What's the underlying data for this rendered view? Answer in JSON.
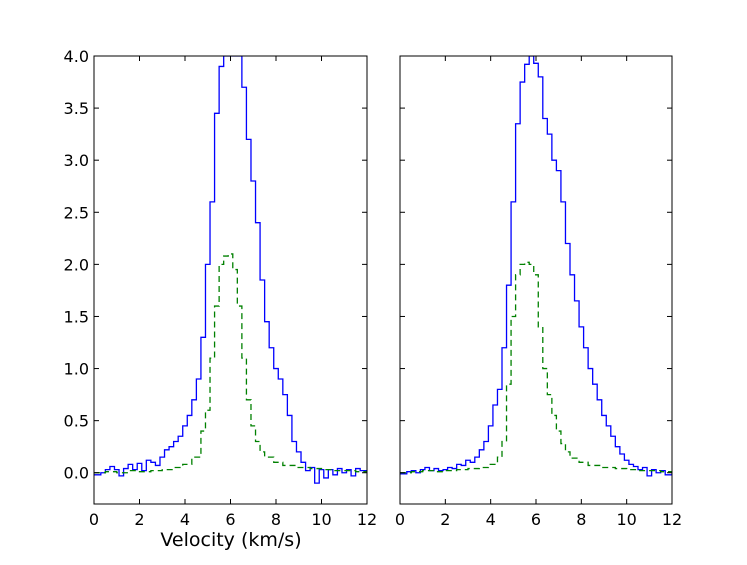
{
  "chart_data": [
    {
      "type": "line",
      "panel": "left",
      "xlabel": "Velocity (km/s)",
      "ylabel": "",
      "xlim": [
        0,
        12
      ],
      "ylim": [
        -0.3,
        4.0
      ],
      "xticks": [
        "0",
        "2",
        "4",
        "6",
        "8",
        "10",
        "12"
      ],
      "yticks": [
        "0.0",
        "0.5",
        "1.0",
        "1.5",
        "2.0",
        "2.5",
        "3.0",
        "3.5",
        "4.0"
      ],
      "grid": false,
      "series": [
        {
          "style": "steps-solid",
          "color": "#0000ff",
          "points": [
            [
              0.0,
              -0.02
            ],
            [
              0.3,
              0.0
            ],
            [
              0.5,
              0.03
            ],
            [
              0.7,
              0.06
            ],
            [
              0.9,
              0.03
            ],
            [
              1.1,
              -0.03
            ],
            [
              1.3,
              0.04
            ],
            [
              1.5,
              0.08
            ],
            [
              1.7,
              0.03
            ],
            [
              1.9,
              0.09
            ],
            [
              2.1,
              0.02
            ],
            [
              2.3,
              0.12
            ],
            [
              2.5,
              0.1
            ],
            [
              2.7,
              0.07
            ],
            [
              2.9,
              0.15
            ],
            [
              3.1,
              0.22
            ],
            [
              3.3,
              0.25
            ],
            [
              3.5,
              0.3
            ],
            [
              3.7,
              0.35
            ],
            [
              3.9,
              0.45
            ],
            [
              4.1,
              0.55
            ],
            [
              4.3,
              0.7
            ],
            [
              4.5,
              0.9
            ],
            [
              4.7,
              1.3
            ],
            [
              4.9,
              2.0
            ],
            [
              5.1,
              2.6
            ],
            [
              5.3,
              3.45
            ],
            [
              5.5,
              3.9
            ],
            [
              5.7,
              4.0
            ],
            [
              6.0,
              4.0
            ],
            [
              6.3,
              4.0
            ],
            [
              6.5,
              3.7
            ],
            [
              6.7,
              3.2
            ],
            [
              6.9,
              2.8
            ],
            [
              7.1,
              2.4
            ],
            [
              7.3,
              1.85
            ],
            [
              7.5,
              1.45
            ],
            [
              7.7,
              1.2
            ],
            [
              7.9,
              1.0
            ],
            [
              8.1,
              0.9
            ],
            [
              8.3,
              0.75
            ],
            [
              8.5,
              0.55
            ],
            [
              8.7,
              0.3
            ],
            [
              8.9,
              0.2
            ],
            [
              9.1,
              0.1
            ],
            [
              9.3,
              0.02
            ],
            [
              9.5,
              0.05
            ],
            [
              9.7,
              -0.1
            ],
            [
              9.9,
              0.03
            ],
            [
              10.1,
              -0.05
            ],
            [
              10.3,
              0.03
            ],
            [
              10.5,
              -0.02
            ],
            [
              10.7,
              0.04
            ],
            [
              10.9,
              0.0
            ],
            [
              11.1,
              0.03
            ],
            [
              11.3,
              -0.03
            ],
            [
              11.5,
              0.04
            ],
            [
              11.7,
              0.02
            ],
            [
              12.0,
              0.02
            ]
          ]
        },
        {
          "style": "steps-dashed",
          "color": "#008000",
          "points": [
            [
              0.0,
              0.0
            ],
            [
              0.5,
              0.01
            ],
            [
              1.0,
              0.0
            ],
            [
              1.5,
              0.02
            ],
            [
              2.0,
              0.01
            ],
            [
              2.5,
              0.02
            ],
            [
              3.0,
              0.03
            ],
            [
              3.5,
              0.05
            ],
            [
              3.9,
              0.08
            ],
            [
              4.3,
              0.15
            ],
            [
              4.7,
              0.4
            ],
            [
              4.9,
              0.6
            ],
            [
              5.1,
              1.1
            ],
            [
              5.3,
              1.6
            ],
            [
              5.5,
              2.0
            ],
            [
              5.7,
              2.08
            ],
            [
              5.9,
              2.1
            ],
            [
              6.1,
              1.95
            ],
            [
              6.3,
              1.6
            ],
            [
              6.5,
              1.1
            ],
            [
              6.7,
              0.7
            ],
            [
              6.9,
              0.45
            ],
            [
              7.1,
              0.3
            ],
            [
              7.3,
              0.2
            ],
            [
              7.5,
              0.15
            ],
            [
              7.9,
              0.1
            ],
            [
              8.3,
              0.07
            ],
            [
              8.9,
              0.05
            ],
            [
              9.5,
              0.04
            ],
            [
              10.0,
              0.03
            ],
            [
              10.5,
              0.02
            ],
            [
              11.0,
              0.02
            ],
            [
              11.5,
              0.01
            ],
            [
              12.0,
              0.01
            ]
          ]
        }
      ]
    },
    {
      "type": "line",
      "panel": "right",
      "xlabel": "",
      "ylabel": "",
      "xlim": [
        0,
        12
      ],
      "ylim": [
        -0.3,
        4.0
      ],
      "xticks": [
        "0",
        "2",
        "4",
        "6",
        "8",
        "10",
        "12"
      ],
      "yticks": [],
      "grid": false,
      "series": [
        {
          "style": "steps-solid",
          "color": "#0000ff",
          "points": [
            [
              0.0,
              -0.01
            ],
            [
              0.3,
              0.01
            ],
            [
              0.5,
              0.02
            ],
            [
              0.7,
              0.0
            ],
            [
              0.9,
              0.03
            ],
            [
              1.1,
              0.05
            ],
            [
              1.3,
              0.02
            ],
            [
              1.5,
              0.04
            ],
            [
              1.7,
              0.02
            ],
            [
              1.9,
              0.03
            ],
            [
              2.1,
              0.05
            ],
            [
              2.3,
              0.04
            ],
            [
              2.5,
              0.08
            ],
            [
              2.7,
              0.07
            ],
            [
              2.9,
              0.12
            ],
            [
              3.1,
              0.1
            ],
            [
              3.3,
              0.15
            ],
            [
              3.5,
              0.22
            ],
            [
              3.7,
              0.3
            ],
            [
              3.9,
              0.45
            ],
            [
              4.1,
              0.65
            ],
            [
              4.3,
              0.8
            ],
            [
              4.5,
              1.2
            ],
            [
              4.7,
              1.8
            ],
            [
              4.9,
              2.6
            ],
            [
              5.1,
              3.35
            ],
            [
              5.3,
              3.75
            ],
            [
              5.5,
              3.92
            ],
            [
              5.7,
              4.0
            ],
            [
              5.9,
              3.93
            ],
            [
              6.1,
              3.8
            ],
            [
              6.3,
              3.4
            ],
            [
              6.5,
              3.25
            ],
            [
              6.7,
              3.0
            ],
            [
              6.9,
              2.9
            ],
            [
              7.1,
              2.6
            ],
            [
              7.3,
              2.2
            ],
            [
              7.5,
              1.9
            ],
            [
              7.7,
              1.65
            ],
            [
              7.9,
              1.4
            ],
            [
              8.1,
              1.2
            ],
            [
              8.3,
              1.0
            ],
            [
              8.5,
              0.85
            ],
            [
              8.7,
              0.7
            ],
            [
              8.9,
              0.55
            ],
            [
              9.1,
              0.45
            ],
            [
              9.3,
              0.35
            ],
            [
              9.5,
              0.25
            ],
            [
              9.7,
              0.18
            ],
            [
              9.9,
              0.12
            ],
            [
              10.1,
              0.08
            ],
            [
              10.3,
              0.06
            ],
            [
              10.5,
              0.03
            ],
            [
              10.7,
              0.05
            ],
            [
              10.9,
              -0.03
            ],
            [
              11.1,
              0.03
            ],
            [
              11.3,
              0.0
            ],
            [
              11.5,
              0.02
            ],
            [
              11.7,
              -0.02
            ],
            [
              12.0,
              0.01
            ]
          ]
        },
        {
          "style": "steps-dashed",
          "color": "#008000",
          "points": [
            [
              0.0,
              0.0
            ],
            [
              0.5,
              0.01
            ],
            [
              1.0,
              0.02
            ],
            [
              1.5,
              0.01
            ],
            [
              2.0,
              0.02
            ],
            [
              2.5,
              0.03
            ],
            [
              3.0,
              0.04
            ],
            [
              3.5,
              0.05
            ],
            [
              3.9,
              0.08
            ],
            [
              4.3,
              0.15
            ],
            [
              4.5,
              0.3
            ],
            [
              4.7,
              0.85
            ],
            [
              4.9,
              1.5
            ],
            [
              5.1,
              1.9
            ],
            [
              5.3,
              2.0
            ],
            [
              5.5,
              2.02
            ],
            [
              5.7,
              2.0
            ],
            [
              5.9,
              1.9
            ],
            [
              6.1,
              1.4
            ],
            [
              6.3,
              1.0
            ],
            [
              6.5,
              0.75
            ],
            [
              6.7,
              0.55
            ],
            [
              6.9,
              0.4
            ],
            [
              7.1,
              0.28
            ],
            [
              7.3,
              0.2
            ],
            [
              7.5,
              0.14
            ],
            [
              7.9,
              0.1
            ],
            [
              8.3,
              0.07
            ],
            [
              8.9,
              0.05
            ],
            [
              9.5,
              0.04
            ],
            [
              10.0,
              0.03
            ],
            [
              10.5,
              0.02
            ],
            [
              11.0,
              0.02
            ],
            [
              11.5,
              0.01
            ],
            [
              12.0,
              0.01
            ]
          ]
        }
      ]
    }
  ]
}
